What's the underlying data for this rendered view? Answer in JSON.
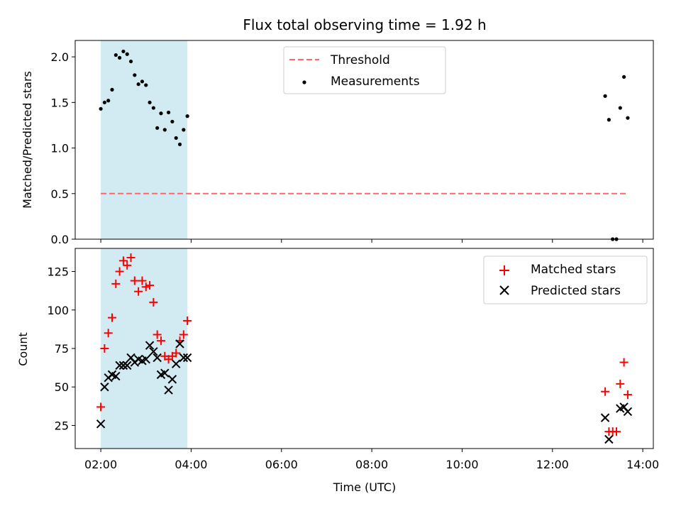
{
  "chart_data": [
    {
      "type": "scatter",
      "title": "Flux total observing time = 1.92 h",
      "xlabel": "",
      "ylabel": "Matched/Predicted stars",
      "xlim": [
        "01:26",
        "14:14"
      ],
      "ylim": [
        0,
        2.18
      ],
      "yticks": [
        "0.0",
        "0.5",
        "1.0",
        "1.5",
        "2.0"
      ],
      "ytick_values": [
        0,
        0.5,
        1.0,
        1.5,
        2.0
      ],
      "grid": false,
      "legend_position": "upper center",
      "shaded_interval": {
        "start": "02:00",
        "end": "03:55",
        "color": "#add8e6"
      },
      "series": [
        {
          "name": "Threshold",
          "style": "dashed-line",
          "color": "#ff6666",
          "x": [
            "02:00",
            "13:40"
          ],
          "y": [
            0.5,
            0.5
          ]
        },
        {
          "name": "Measurements",
          "style": "dot",
          "color": "#000000",
          "x": [
            "02:00",
            "02:05",
            "02:10",
            "02:15",
            "02:20",
            "02:25",
            "02:30",
            "02:35",
            "02:40",
            "02:45",
            "02:50",
            "02:55",
            "03:00",
            "03:05",
            "03:10",
            "03:15",
            "03:20",
            "03:25",
            "03:30",
            "03:35",
            "03:40",
            "03:45",
            "03:50",
            "03:55",
            "13:10",
            "13:15",
            "13:20",
            "13:25",
            "13:30",
            "13:35",
            "13:40"
          ],
          "y": [
            1.43,
            1.5,
            1.52,
            1.64,
            2.02,
            1.99,
            2.06,
            2.03,
            1.95,
            1.8,
            1.7,
            1.73,
            1.69,
            1.5,
            1.44,
            1.22,
            1.38,
            1.2,
            1.39,
            1.29,
            1.11,
            1.04,
            1.2,
            1.35,
            1.57,
            1.31,
            0.0,
            0.0,
            1.44,
            1.78,
            1.33
          ]
        }
      ]
    },
    {
      "type": "scatter",
      "title": "",
      "xlabel": "Time (UTC)",
      "ylabel": "Count",
      "xlim": [
        "01:26",
        "14:14"
      ],
      "ylim": [
        10,
        140
      ],
      "yticks": [
        "25",
        "50",
        "75",
        "100",
        "125"
      ],
      "ytick_values": [
        25,
        50,
        75,
        100,
        125
      ],
      "xticks": [
        "02:00",
        "04:00",
        "06:00",
        "08:00",
        "10:00",
        "12:00",
        "14:00"
      ],
      "grid": false,
      "legend_position": "upper right",
      "shaded_interval": {
        "start": "02:00",
        "end": "03:55",
        "color": "#add8e6"
      },
      "series": [
        {
          "name": "Matched stars",
          "marker": "+",
          "color": "#ff0000",
          "x": [
            "02:00",
            "02:05",
            "02:10",
            "02:15",
            "02:20",
            "02:25",
            "02:30",
            "02:35",
            "02:40",
            "02:45",
            "02:50",
            "02:55",
            "03:00",
            "03:05",
            "03:10",
            "03:15",
            "03:20",
            "03:25",
            "03:30",
            "03:35",
            "03:40",
            "03:45",
            "03:50",
            "03:55",
            "13:10",
            "13:15",
            "13:20",
            "13:25",
            "13:30",
            "13:35",
            "13:40"
          ],
          "y": [
            37,
            75,
            85,
            95,
            117,
            125,
            132,
            129,
            134,
            119,
            112,
            119,
            115,
            116,
            105,
            84,
            80,
            70,
            68,
            70,
            72,
            80,
            84,
            93,
            47,
            21,
            21,
            21,
            52,
            66,
            45
          ]
        },
        {
          "name": "Predicted stars",
          "marker": "x",
          "color": "#000000",
          "x": [
            "02:00",
            "02:05",
            "02:10",
            "02:15",
            "02:20",
            "02:25",
            "02:30",
            "02:35",
            "02:40",
            "02:45",
            "02:50",
            "02:55",
            "03:00",
            "03:05",
            "03:10",
            "03:15",
            "03:20",
            "03:25",
            "03:30",
            "03:35",
            "03:40",
            "03:45",
            "03:50",
            "03:55",
            "13:10",
            "13:15",
            "13:20",
            "13:25",
            "13:30",
            "13:35",
            "13:40"
          ],
          "y": [
            26,
            50,
            56,
            58,
            57,
            64,
            64,
            64,
            69,
            66,
            68,
            67,
            68,
            77,
            73,
            69,
            58,
            59,
            48,
            55,
            65,
            78,
            69,
            69,
            30,
            16,
            null,
            null,
            36,
            37,
            34
          ]
        }
      ]
    }
  ]
}
